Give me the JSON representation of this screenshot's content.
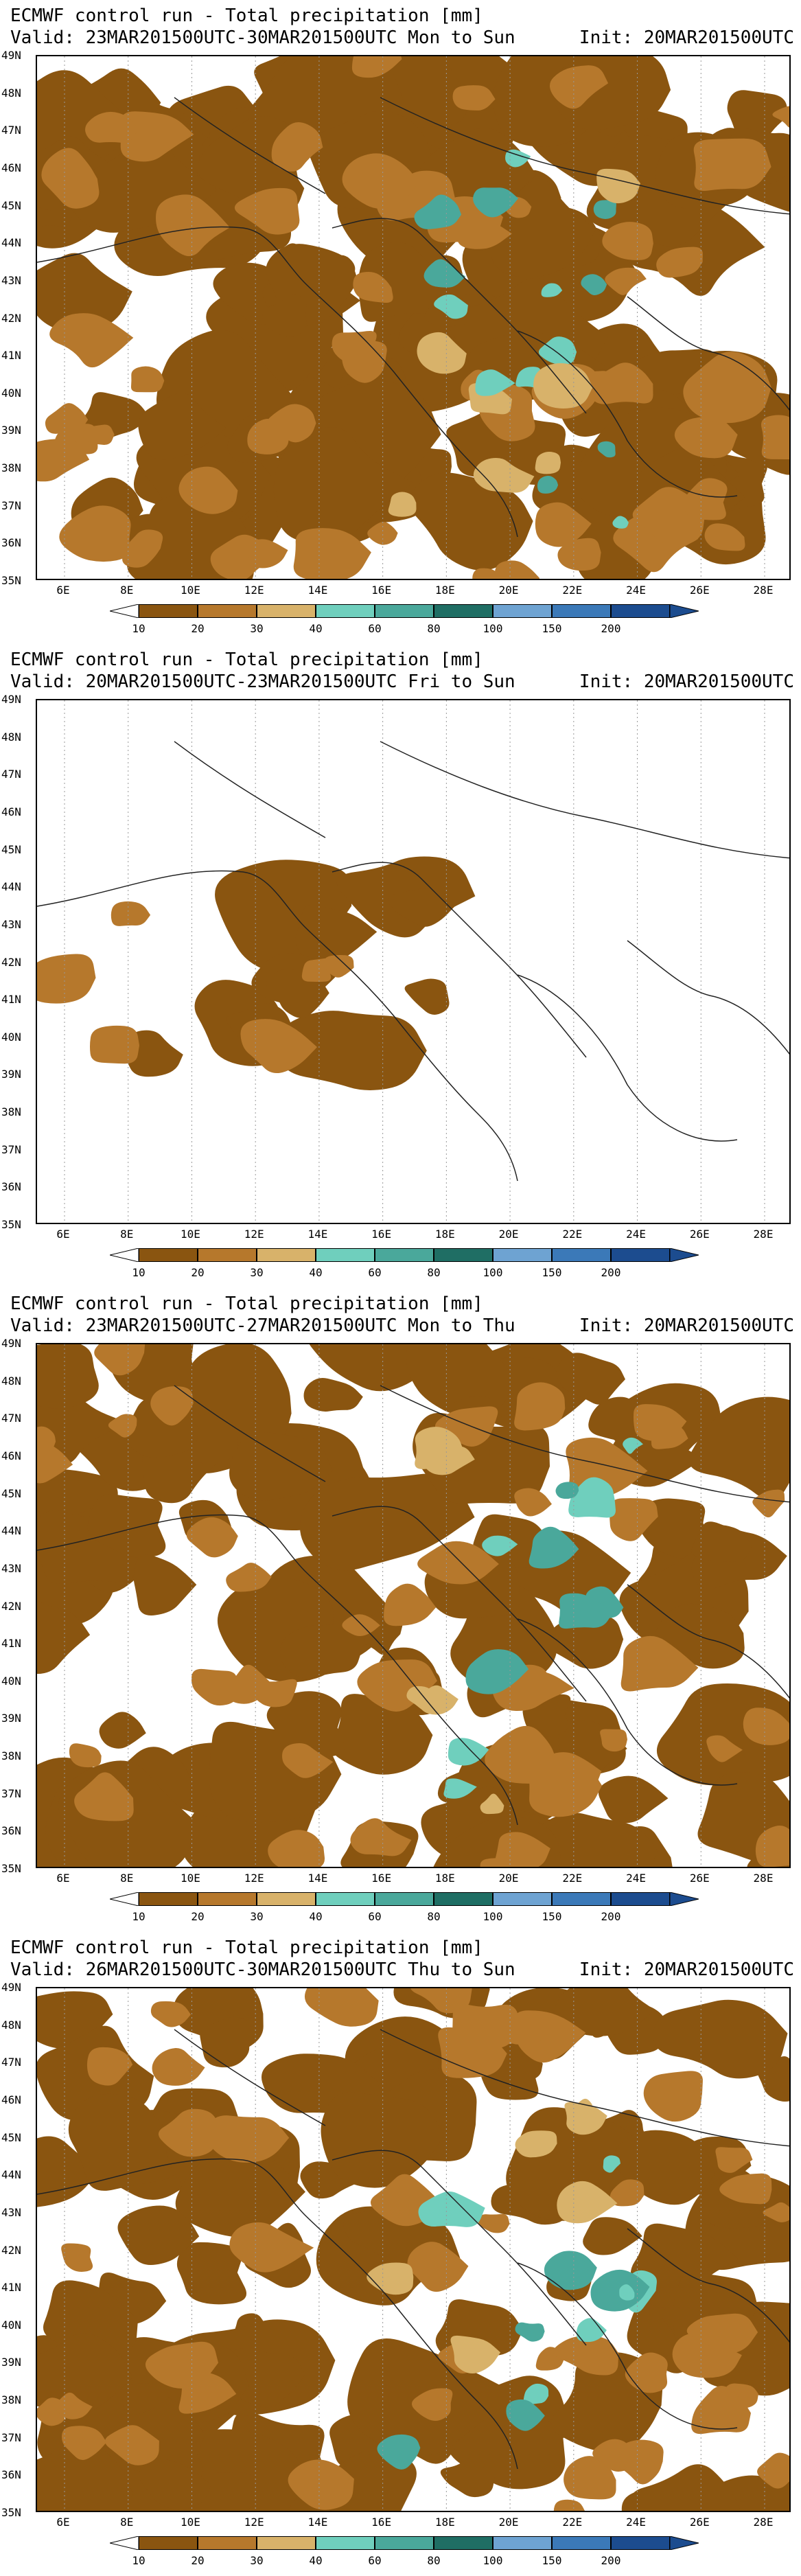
{
  "palette": {
    "c10": "#8a5510",
    "c20": "#b6782c",
    "c30": "#d8b26a",
    "c40": "#6fcfbd",
    "c60": "#4aa89b",
    "c80": "#1f6e64",
    "c100": "#6ea3d2",
    "c150": "#3b79b8",
    "c200": "#1c4c8f",
    "under": "#ffffff"
  },
  "lat_labels": [
    "49N",
    "48N",
    "47N",
    "46N",
    "45N",
    "44N",
    "43N",
    "42N",
    "41N",
    "40N",
    "39N",
    "38N",
    "37N",
    "36N",
    "35N"
  ],
  "lon_labels": [
    "6E",
    "8E",
    "10E",
    "12E",
    "14E",
    "16E",
    "18E",
    "20E",
    "22E",
    "24E",
    "26E",
    "28E"
  ],
  "colorbar_labels": [
    "10",
    "20",
    "30",
    "40",
    "60",
    "80",
    "100",
    "150",
    "200"
  ],
  "panels": [
    {
      "title": "ECMWF control run - Total precipitation [mm]",
      "valid": "Valid: 23MAR201500UTC-30MAR201500UTC Mon to Sun",
      "init": "Init: 20MAR201500UTC",
      "coverage": 0.75
    },
    {
      "title": "ECMWF control run - Total precipitation [mm]",
      "valid": "Valid: 20MAR201500UTC-23MAR201500UTC Fri to Sun",
      "init": "Init: 20MAR201500UTC",
      "coverage": 0.08
    },
    {
      "title": "ECMWF control run - Total precipitation [mm]",
      "valid": "Valid: 23MAR201500UTC-27MAR201500UTC Mon to Thu",
      "init": "Init: 20MAR201500UTC",
      "coverage": 0.55
    },
    {
      "title": "ECMWF control run - Total precipitation [mm]",
      "valid": "Valid: 26MAR201500UTC-30MAR201500UTC Thu to Sun",
      "init": "Init: 20MAR201500UTC",
      "coverage": 0.6
    }
  ]
}
